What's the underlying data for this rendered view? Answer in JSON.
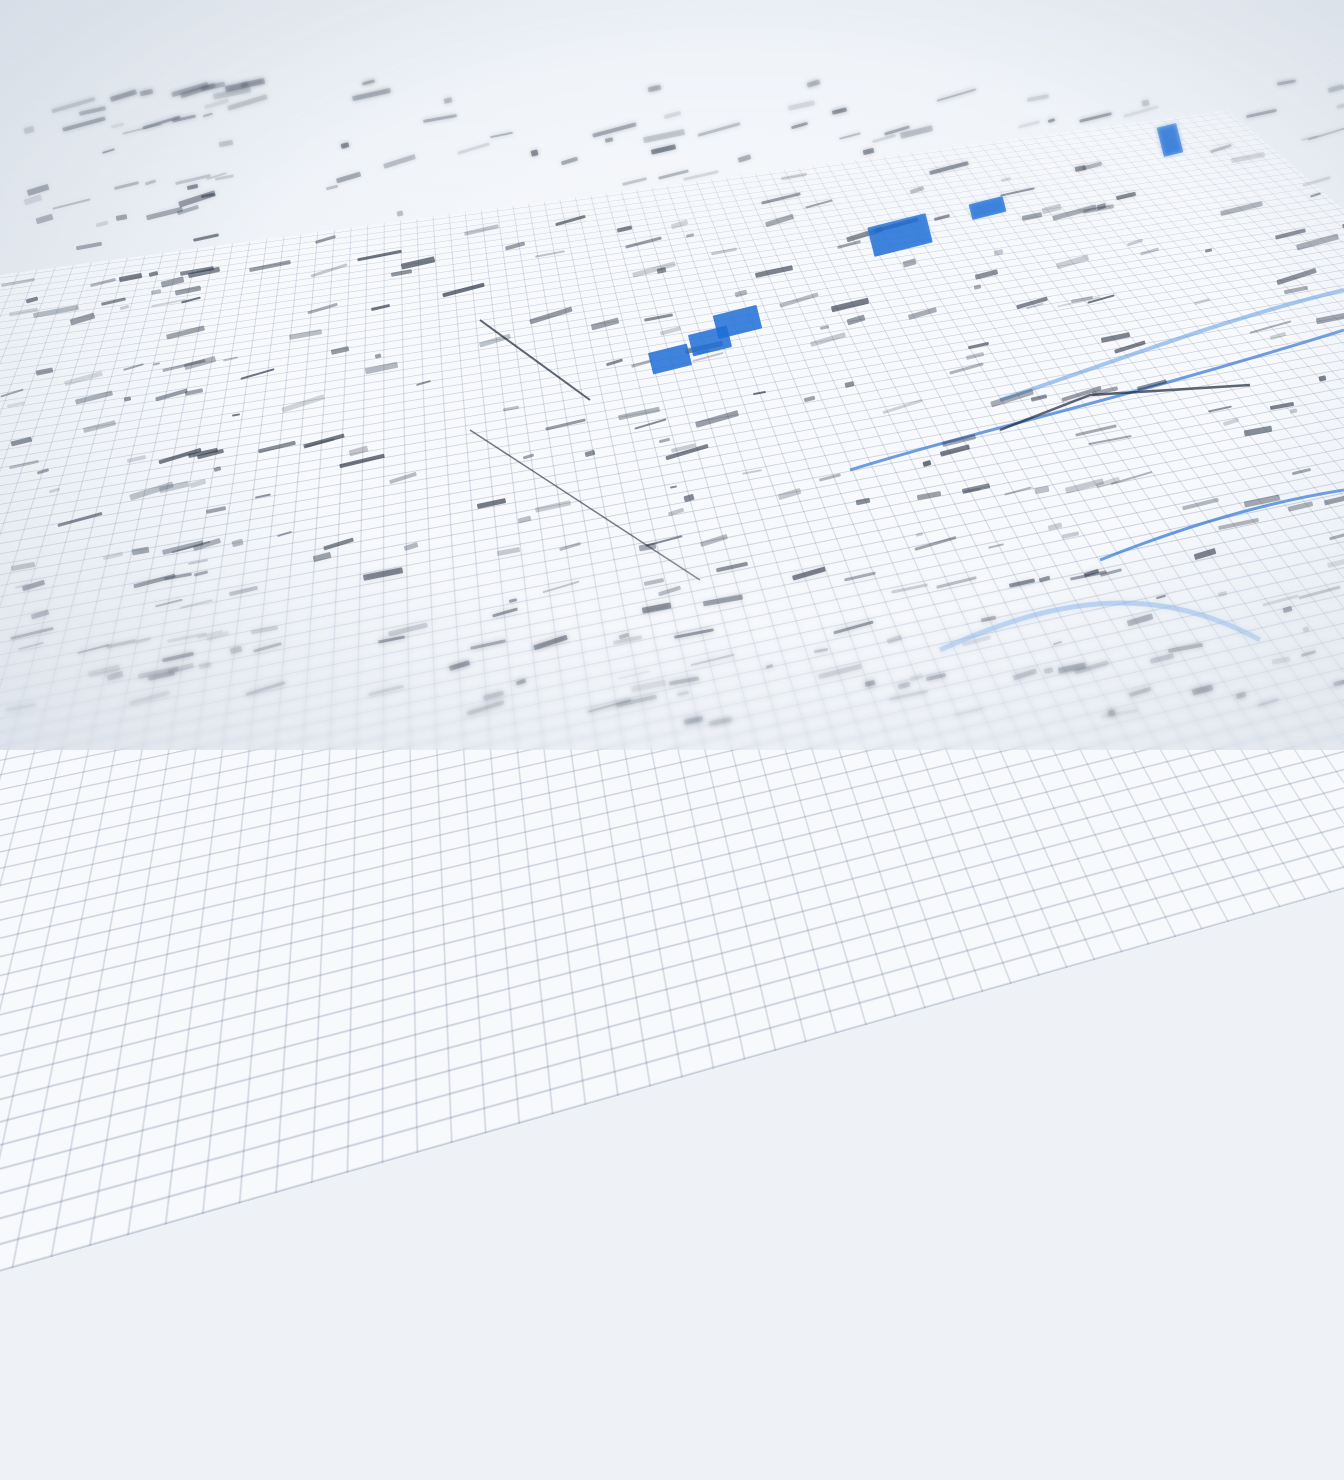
{
  "scene": {
    "subject": "blurred-spreadsheet-printout",
    "colors": {
      "paper": "#f7f9fc",
      "grid": "#3c5078",
      "ink": "#1c2638",
      "accent_blue": "#1f6fd6",
      "light_blue": "#6aa2e6"
    }
  }
}
